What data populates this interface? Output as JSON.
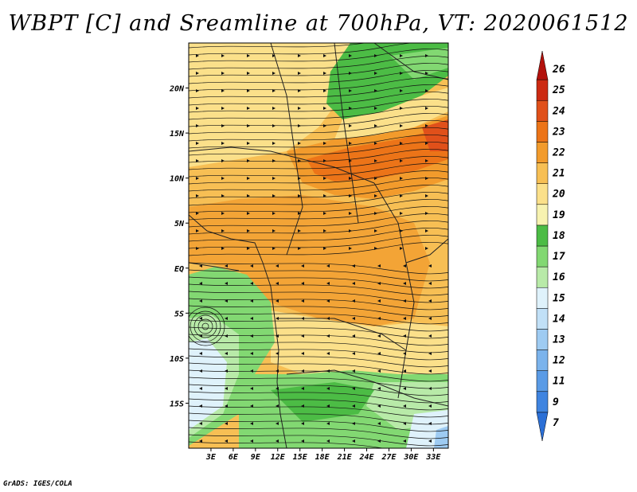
{
  "title": "WBPT [C] and Sreamline at 700hPa, VT: 2020061512",
  "credit": "GrADS: IGES/COLA",
  "map": {
    "variable": "Wet-bulb potential temperature",
    "units": "C",
    "level": "700hPa",
    "valid_time": "2020061512",
    "lon_range": [
      0,
      35
    ],
    "lat_range": [
      -20,
      25
    ],
    "lon_ticks": [
      {
        "value": 3,
        "label": "3E"
      },
      {
        "value": 6,
        "label": "6E"
      },
      {
        "value": 9,
        "label": "9E"
      },
      {
        "value": 12,
        "label": "12E"
      },
      {
        "value": 15,
        "label": "15E"
      },
      {
        "value": 18,
        "label": "18E"
      },
      {
        "value": 21,
        "label": "21E"
      },
      {
        "value": 24,
        "label": "24E"
      },
      {
        "value": 27,
        "label": "27E"
      },
      {
        "value": 30,
        "label": "30E"
      },
      {
        "value": 33,
        "label": "33E"
      }
    ],
    "lat_ticks": [
      {
        "value": 20,
        "label": "20N"
      },
      {
        "value": 15,
        "label": "15N"
      },
      {
        "value": 10,
        "label": "10N"
      },
      {
        "value": 5,
        "label": "5N"
      },
      {
        "value": 0,
        "label": "EQ"
      },
      {
        "value": -5,
        "label": "5S"
      },
      {
        "value": -10,
        "label": "10S"
      },
      {
        "value": -15,
        "label": "15S"
      }
    ]
  },
  "colorbar": {
    "levels": [
      "7",
      "9",
      "11",
      "12",
      "13",
      "14",
      "15",
      "16",
      "17",
      "18",
      "19",
      "20",
      "21",
      "22",
      "23",
      "24",
      "25",
      "26"
    ],
    "colors": [
      "#2b6fd6",
      "#3f84e0",
      "#5a9be6",
      "#7bb3ec",
      "#9ecbf2",
      "#c1e0f7",
      "#dff2fb",
      "#b8eaa8",
      "#82d872",
      "#4cbc45",
      "#f7f2b0",
      "#fbe08a",
      "#f7bf54",
      "#f29b2c",
      "#ec7418",
      "#e0501a",
      "#cc2a12",
      "#b2110c"
    ]
  }
}
